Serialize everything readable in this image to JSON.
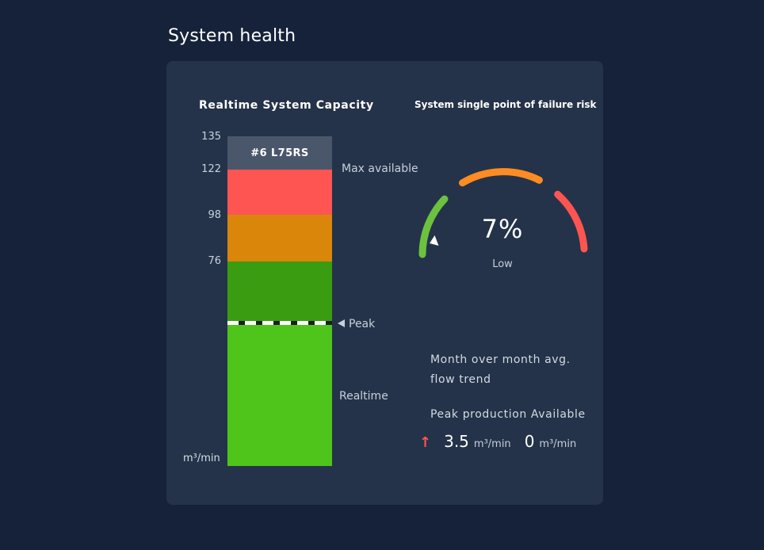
{
  "page": {
    "title": "System health"
  },
  "capacity": {
    "title": "Realtime System Capacity",
    "ticks": [
      "135",
      "122",
      "98",
      "76"
    ],
    "unit": "m³/min",
    "reserve_label": "#6 L75RS",
    "max_label": "Max available",
    "peak_label": "Peak",
    "realtime_label": "Realtime",
    "colors": {
      "reserve": "#4a576b",
      "red": "#ff5552",
      "orange": "#d9860b",
      "dark_green": "#3a9c10",
      "light_green": "#4fc51c"
    }
  },
  "risk": {
    "title": "System single point of failure risk",
    "value": "7%",
    "value_fraction": 0.07,
    "status": "Low",
    "colors": {
      "low": "#6cc13f",
      "medium": "#ff8c22",
      "high": "#ff5552"
    }
  },
  "trend": {
    "label": "Month over month avg. flow trend",
    "peak_available_label": "Peak production Available",
    "direction_icon": "arrow-up-icon",
    "peak_value": "3.5",
    "peak_unit": "m³/min",
    "available_value": "0",
    "available_unit": "m³/min"
  }
}
